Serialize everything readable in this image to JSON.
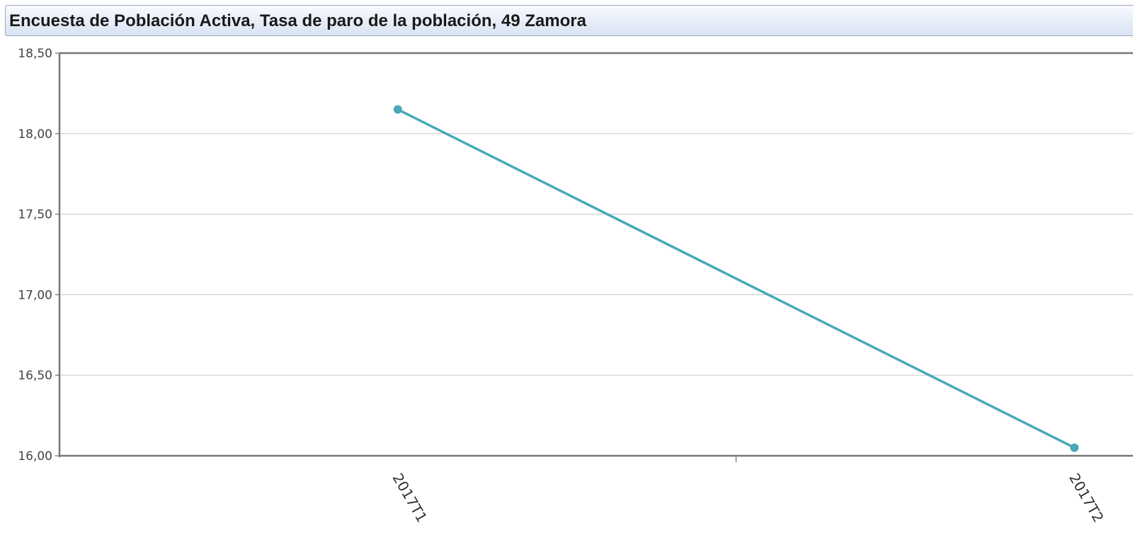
{
  "chart_data": {
    "type": "line",
    "title": "Encuesta de Población Activa, Tasa de paro de la población, 49 Zamora",
    "categories": [
      "2017T1",
      "2017T2"
    ],
    "series": [
      {
        "values": [
          18.15,
          16.05
        ],
        "color": "#4aa8b8"
      }
    ],
    "ylim": [
      16.0,
      18.5
    ],
    "yticks": [
      "16,00",
      "16,50",
      "17,00",
      "17,50",
      "18,00",
      "18,50"
    ],
    "grid": true,
    "legend": "none"
  }
}
